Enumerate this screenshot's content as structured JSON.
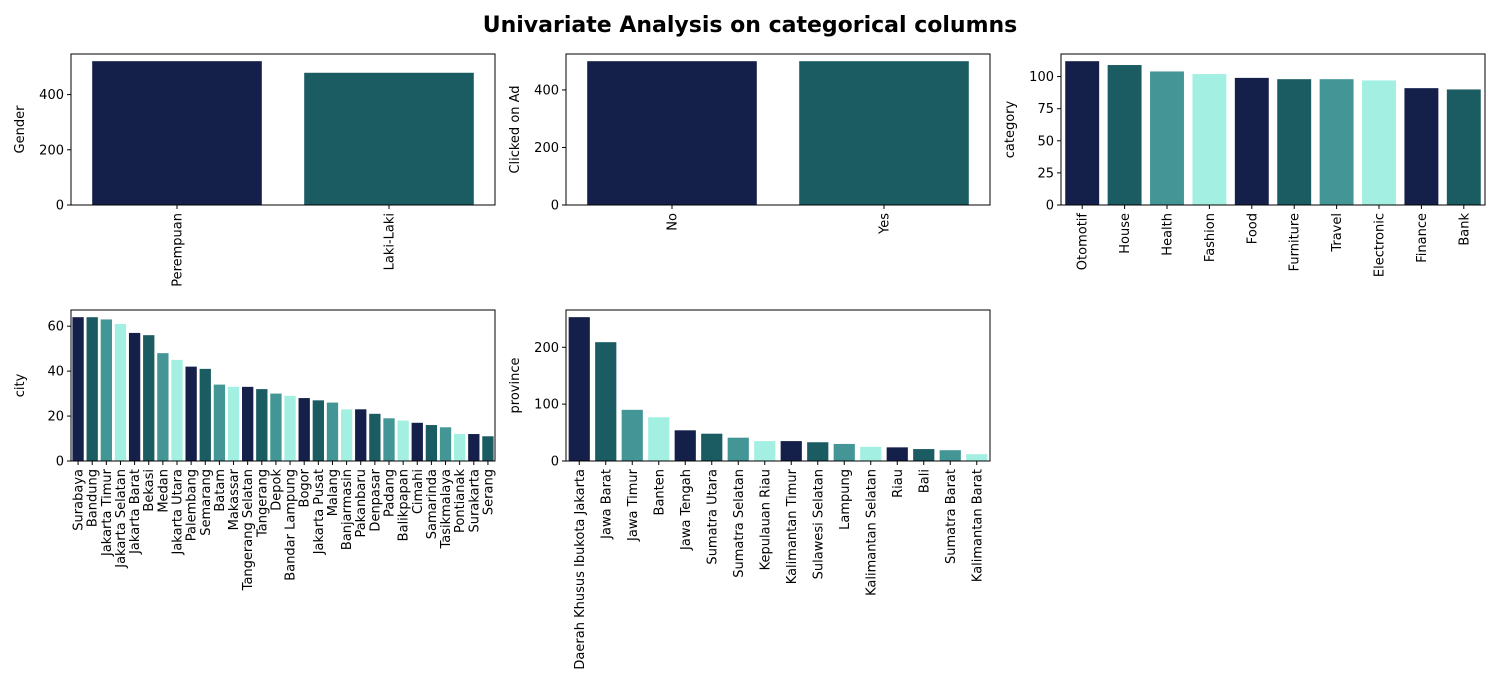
{
  "figure": {
    "title": "Univariate Analysis on categorical columns"
  },
  "palette": [
    "#141f4a",
    "#1a5c61",
    "#449696",
    "#a3f0e3"
  ],
  "chart_data": [
    {
      "type": "bar",
      "ylabel": "Gender",
      "categories": [
        "Perempuan",
        "Laki-Laki"
      ],
      "values": [
        521,
        479
      ],
      "ylim": [
        0,
        547
      ],
      "yticks": [
        0,
        200,
        400
      ],
      "colors": [
        "#141f4a",
        "#1a5c61"
      ]
    },
    {
      "type": "bar",
      "ylabel": "Clicked on Ad",
      "categories": [
        "No",
        "Yes"
      ],
      "values": [
        500,
        500
      ],
      "ylim": [
        0,
        525
      ],
      "yticks": [
        0,
        200,
        400
      ],
      "colors": [
        "#141f4a",
        "#1a5c61"
      ]
    },
    {
      "type": "bar",
      "ylabel": "category",
      "categories": [
        "Otomotif",
        "House",
        "Health",
        "Fashion",
        "Food",
        "Furniture",
        "Travel",
        "Electronic",
        "Finance",
        "Bank"
      ],
      "values": [
        112,
        109,
        104,
        102,
        99,
        98,
        98,
        97,
        91,
        90
      ],
      "ylim": [
        0,
        117.6
      ],
      "yticks": [
        0,
        25,
        50,
        75,
        100
      ],
      "colors": [
        "#141f4a",
        "#1a5c61",
        "#449696",
        "#a3f0e3"
      ]
    },
    {
      "type": "bar",
      "ylabel": "city",
      "categories": [
        "Surabaya",
        "Bandung",
        "Jakarta Timur",
        "Jakarta Selatan",
        "Jakarta Barat",
        "Bekasi",
        "Medan",
        "Jakarta Utara",
        "Palembang",
        "Semarang",
        "Batam",
        "Makassar",
        "Tangerang Selatan",
        "Tangerang",
        "Depok",
        "Bandar Lampung",
        "Bogor",
        "Jakarta Pusat",
        "Malang",
        "Banjarmasin",
        "Pakanbaru",
        "Denpasar",
        "Padang",
        "Balikpapan",
        "Cimahi",
        "Samarinda",
        "Tasikmalaya",
        "Pontianak",
        "Surakarta",
        "Serang"
      ],
      "values": [
        64,
        64,
        63,
        61,
        57,
        56,
        48,
        45,
        42,
        41,
        34,
        33,
        33,
        32,
        30,
        29,
        28,
        27,
        26,
        23,
        23,
        21,
        19,
        18,
        17,
        16,
        15,
        12,
        12,
        11
      ],
      "ylim": [
        0,
        67.2
      ],
      "yticks": [
        0,
        20,
        40,
        60
      ],
      "colors": [
        "#141f4a",
        "#1a5c61",
        "#449696",
        "#a3f0e3"
      ]
    },
    {
      "type": "bar",
      "ylabel": "province",
      "categories": [
        "Daerah Khusus Ibukota Jakarta",
        "Jawa Barat",
        "Jawa Timur",
        "Banten",
        "Jawa Tengah",
        "Sumatra Utara",
        "Sumatra Selatan",
        "Kepulauan Riau",
        "Kalimantan Timur",
        "Sulawesi Selatan",
        "Lampung",
        "Kalimantan Selatan",
        "Riau",
        "Bali",
        "Sumatra Barat",
        "Kalimantan Barat"
      ],
      "values": [
        253,
        209,
        90,
        77,
        54,
        48,
        41,
        35,
        35,
        33,
        30,
        25,
        24,
        21,
        19,
        12
      ],
      "ylim": [
        0,
        265.6
      ],
      "yticks": [
        0,
        100,
        200
      ],
      "colors": [
        "#141f4a",
        "#1a5c61",
        "#449696",
        "#a3f0e3"
      ]
    }
  ]
}
